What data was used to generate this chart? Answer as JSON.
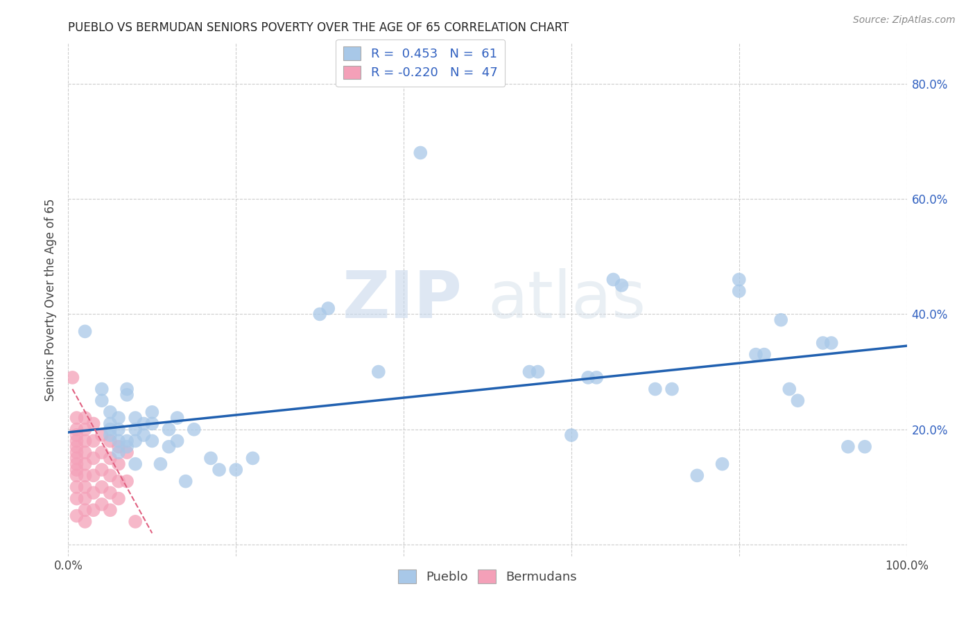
{
  "title": "PUEBLO VS BERMUDAN SENIORS POVERTY OVER THE AGE OF 65 CORRELATION CHART",
  "source": "Source: ZipAtlas.com",
  "ylabel": "Seniors Poverty Over the Age of 65",
  "xlim": [
    0,
    1.0
  ],
  "ylim": [
    -0.02,
    0.87
  ],
  "watermark_zip": "ZIP",
  "watermark_atlas": "atlas",
  "pueblo_color": "#a8c8e8",
  "bermuda_color": "#f4a0b8",
  "line_color_pueblo": "#2060b0",
  "line_color_bermuda": "#e06080",
  "pueblo_R": "0.453",
  "pueblo_N": "61",
  "bermuda_R": "-0.220",
  "bermuda_N": "47",
  "pueblo_scatter": [
    [
      0.02,
      0.37
    ],
    [
      0.04,
      0.27
    ],
    [
      0.04,
      0.25
    ],
    [
      0.05,
      0.23
    ],
    [
      0.05,
      0.21
    ],
    [
      0.05,
      0.2
    ],
    [
      0.05,
      0.19
    ],
    [
      0.06,
      0.22
    ],
    [
      0.06,
      0.2
    ],
    [
      0.06,
      0.18
    ],
    [
      0.06,
      0.16
    ],
    [
      0.07,
      0.27
    ],
    [
      0.07,
      0.26
    ],
    [
      0.07,
      0.18
    ],
    [
      0.07,
      0.17
    ],
    [
      0.08,
      0.22
    ],
    [
      0.08,
      0.2
    ],
    [
      0.08,
      0.18
    ],
    [
      0.08,
      0.14
    ],
    [
      0.09,
      0.21
    ],
    [
      0.09,
      0.19
    ],
    [
      0.1,
      0.23
    ],
    [
      0.1,
      0.21
    ],
    [
      0.1,
      0.18
    ],
    [
      0.11,
      0.14
    ],
    [
      0.12,
      0.2
    ],
    [
      0.12,
      0.17
    ],
    [
      0.13,
      0.22
    ],
    [
      0.13,
      0.18
    ],
    [
      0.14,
      0.11
    ],
    [
      0.15,
      0.2
    ],
    [
      0.17,
      0.15
    ],
    [
      0.18,
      0.13
    ],
    [
      0.2,
      0.13
    ],
    [
      0.22,
      0.15
    ],
    [
      0.3,
      0.4
    ],
    [
      0.31,
      0.41
    ],
    [
      0.37,
      0.3
    ],
    [
      0.42,
      0.68
    ],
    [
      0.55,
      0.3
    ],
    [
      0.56,
      0.3
    ],
    [
      0.6,
      0.19
    ],
    [
      0.62,
      0.29
    ],
    [
      0.63,
      0.29
    ],
    [
      0.65,
      0.46
    ],
    [
      0.66,
      0.45
    ],
    [
      0.7,
      0.27
    ],
    [
      0.72,
      0.27
    ],
    [
      0.75,
      0.12
    ],
    [
      0.78,
      0.14
    ],
    [
      0.8,
      0.46
    ],
    [
      0.8,
      0.44
    ],
    [
      0.82,
      0.33
    ],
    [
      0.83,
      0.33
    ],
    [
      0.85,
      0.39
    ],
    [
      0.86,
      0.27
    ],
    [
      0.87,
      0.25
    ],
    [
      0.9,
      0.35
    ],
    [
      0.91,
      0.35
    ],
    [
      0.93,
      0.17
    ],
    [
      0.95,
      0.17
    ]
  ],
  "bermuda_scatter": [
    [
      0.005,
      0.29
    ],
    [
      0.01,
      0.22
    ],
    [
      0.01,
      0.2
    ],
    [
      0.01,
      0.19
    ],
    [
      0.01,
      0.18
    ],
    [
      0.01,
      0.17
    ],
    [
      0.01,
      0.16
    ],
    [
      0.01,
      0.15
    ],
    [
      0.01,
      0.14
    ],
    [
      0.01,
      0.13
    ],
    [
      0.01,
      0.12
    ],
    [
      0.01,
      0.1
    ],
    [
      0.01,
      0.08
    ],
    [
      0.01,
      0.05
    ],
    [
      0.02,
      0.22
    ],
    [
      0.02,
      0.2
    ],
    [
      0.02,
      0.18
    ],
    [
      0.02,
      0.16
    ],
    [
      0.02,
      0.14
    ],
    [
      0.02,
      0.12
    ],
    [
      0.02,
      0.1
    ],
    [
      0.02,
      0.08
    ],
    [
      0.02,
      0.06
    ],
    [
      0.02,
      0.04
    ],
    [
      0.03,
      0.21
    ],
    [
      0.03,
      0.18
    ],
    [
      0.03,
      0.15
    ],
    [
      0.03,
      0.12
    ],
    [
      0.03,
      0.09
    ],
    [
      0.03,
      0.06
    ],
    [
      0.04,
      0.19
    ],
    [
      0.04,
      0.16
    ],
    [
      0.04,
      0.13
    ],
    [
      0.04,
      0.1
    ],
    [
      0.04,
      0.07
    ],
    [
      0.05,
      0.18
    ],
    [
      0.05,
      0.15
    ],
    [
      0.05,
      0.12
    ],
    [
      0.05,
      0.09
    ],
    [
      0.05,
      0.06
    ],
    [
      0.06,
      0.17
    ],
    [
      0.06,
      0.14
    ],
    [
      0.06,
      0.11
    ],
    [
      0.06,
      0.08
    ],
    [
      0.07,
      0.16
    ],
    [
      0.07,
      0.11
    ],
    [
      0.08,
      0.04
    ]
  ],
  "pueblo_trendline": {
    "x_start": 0.0,
    "y_start": 0.195,
    "x_end": 1.0,
    "y_end": 0.345
  },
  "bermuda_trendline": {
    "x_start": 0.005,
    "y_start": 0.27,
    "x_end": 0.1,
    "y_end": 0.02
  }
}
